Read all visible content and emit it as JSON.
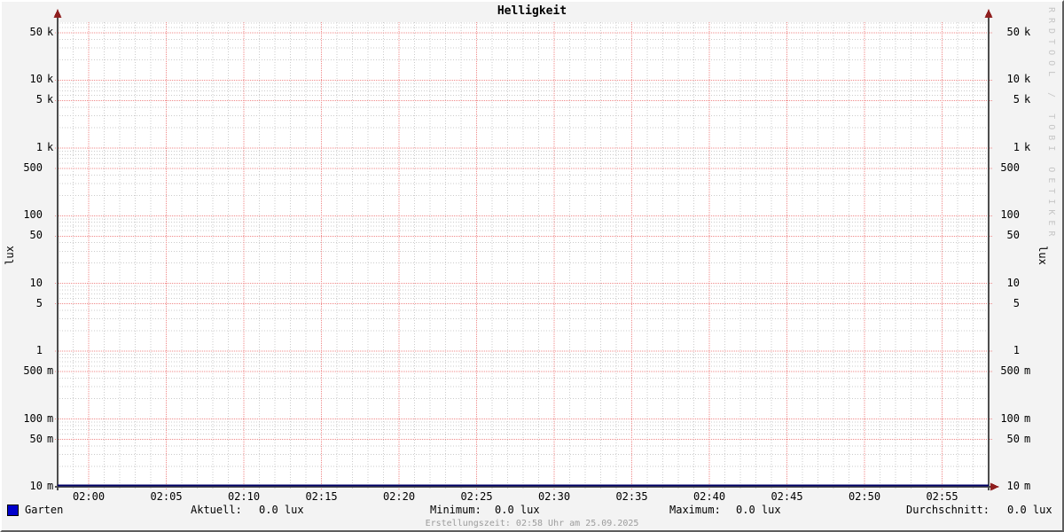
{
  "title": "Helligkeit",
  "y_axis_unit_left": "lux",
  "y_axis_unit_right": "lux",
  "watermark": "RRDTOOL / TOBI OETIKER",
  "footer": "Erstellungszeit: 02:58 Uhr am 25.09.2025",
  "legend": {
    "series_name": "Garten",
    "swatch_color": "#0000cc",
    "stats": [
      {
        "label": "Aktuell:",
        "value": "0.0 lux"
      },
      {
        "label": "Minimum:",
        "value": "0.0 lux"
      },
      {
        "label": "Maximum:",
        "value": "0.0 lux"
      },
      {
        "label": "Durchschnitt:",
        "value": "0.0 lux"
      }
    ]
  },
  "chart_data": {
    "type": "line",
    "title": "Helligkeit",
    "ylabel": "lux",
    "y_scale": "log",
    "ylim": [
      0.01,
      71800
    ],
    "x_range": [
      "01:58",
      "02:58"
    ],
    "x_minor_step_min": 1,
    "x_major_ticks": [
      {
        "min": 2,
        "label": "02:00"
      },
      {
        "min": 7,
        "label": "02:05"
      },
      {
        "min": 12,
        "label": "02:10"
      },
      {
        "min": 17,
        "label": "02:15"
      },
      {
        "min": 22,
        "label": "02:20"
      },
      {
        "min": 27,
        "label": "02:25"
      },
      {
        "min": 32,
        "label": "02:30"
      },
      {
        "min": 37,
        "label": "02:35"
      },
      {
        "min": 42,
        "label": "02:40"
      },
      {
        "min": 47,
        "label": "02:45"
      },
      {
        "min": 52,
        "label": "02:50"
      },
      {
        "min": 57,
        "label": "02:55"
      }
    ],
    "y_major_ticks": [
      {
        "value": 50000,
        "label": "50 k"
      },
      {
        "value": 10000,
        "label": "10 k"
      },
      {
        "value": 5000,
        "label": "5 k"
      },
      {
        "value": 1000,
        "label": "1 k"
      },
      {
        "value": 500,
        "label": "500"
      },
      {
        "value": 100,
        "label": "100"
      },
      {
        "value": 50,
        "label": "50"
      },
      {
        "value": 10,
        "label": "10"
      },
      {
        "value": 5,
        "label": "5"
      },
      {
        "value": 1,
        "label": "1"
      },
      {
        "value": 0.5,
        "label": "500 m"
      },
      {
        "value": 0.1,
        "label": "100 m"
      },
      {
        "value": 0.05,
        "label": "50 m"
      },
      {
        "value": 0.01,
        "label": "10 m"
      }
    ],
    "y_minor_multipliers": [
      2,
      3,
      4,
      6,
      7,
      8,
      9
    ],
    "series": [
      {
        "name": "Garten",
        "color": "#0000cc",
        "constant_value": 0.0
      }
    ],
    "legend_position": "bottom",
    "grid": true,
    "colors": {
      "background": "#f3f3f3",
      "canvas": "#ffffff",
      "major_grid": "#f08a8a",
      "minor_grid": "#cbcbcb",
      "axis": "#4d4d4d",
      "arrow": "#8f1f1f",
      "data_line": "#000066"
    }
  }
}
